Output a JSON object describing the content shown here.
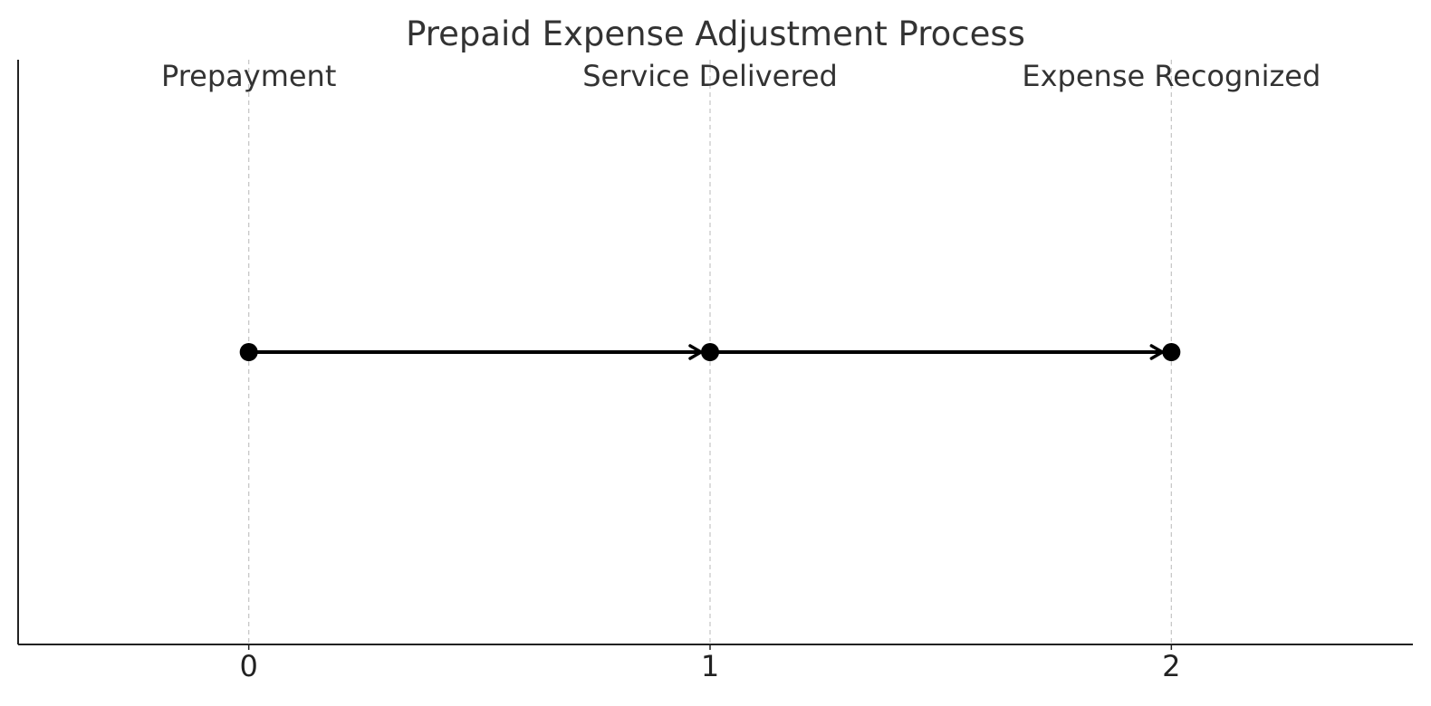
{
  "title": "Prepaid Expense Adjustment Process",
  "chart_data": {
    "type": "timeline",
    "title": "Prepaid Expense Adjustment Process",
    "stages": [
      {
        "label": "Prepayment",
        "x": 0
      },
      {
        "label": "Service Delivered",
        "x": 1
      },
      {
        "label": "Expense Recognized",
        "x": 2
      }
    ],
    "flows": [
      {
        "from": 0,
        "to": 1
      },
      {
        "from": 1,
        "to": 2
      }
    ],
    "xticks": [
      "0",
      "1",
      "2"
    ],
    "xlim": [
      -0.5,
      2.5
    ],
    "grid": "vertical dashed lines at stages",
    "colors": {
      "points": "#000000",
      "arrows": "#000000",
      "guides": "#c8c8c8",
      "text": "#333333"
    }
  }
}
